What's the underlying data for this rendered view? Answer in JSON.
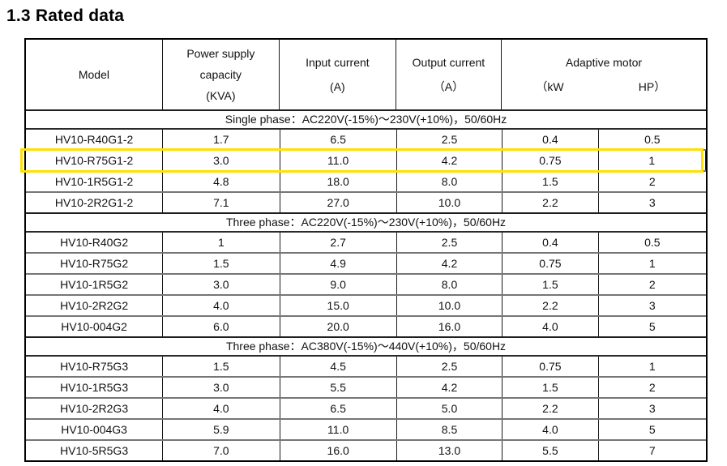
{
  "page_title": "1.3 Rated data",
  "highlight_color": "#ffe000",
  "table": {
    "headers": {
      "model": "Model",
      "power_supply_line1": "Power supply",
      "power_supply_line2": "capacity",
      "power_supply_line3": "(KVA)",
      "input_current_line1": "Input current",
      "input_current_line2": "(A)",
      "output_current_line1": "Output current",
      "output_current_line2": "（A）",
      "adaptive_motor": "Adaptive motor",
      "adaptive_motor_kw": "（kW",
      "adaptive_motor_hp": "HP）"
    },
    "sections": [
      {
        "label": "Single phase：AC220V(-15%)～230V(+10%)，50/60Hz",
        "rows": [
          {
            "model": "HV10-R40G1-2",
            "kva": "1.7",
            "input_a": "6.5",
            "output_a": "2.5",
            "kw": "0.4",
            "hp": "0.5",
            "highlighted": false
          },
          {
            "model": "HV10-R75G1-2",
            "kva": "3.0",
            "input_a": "11.0",
            "output_a": "4.2",
            "kw": "0.75",
            "hp": "1",
            "highlighted": true
          },
          {
            "model": "HV10-1R5G1-2",
            "kva": "4.8",
            "input_a": "18.0",
            "output_a": "8.0",
            "kw": "1.5",
            "hp": "2",
            "highlighted": false
          },
          {
            "model": "HV10-2R2G1-2",
            "kva": "7.1",
            "input_a": "27.0",
            "output_a": "10.0",
            "kw": "2.2",
            "hp": "3",
            "highlighted": false
          }
        ]
      },
      {
        "label": "Three phase：AC220V(-15%)～230V(+10%)，50/60Hz",
        "rows": [
          {
            "model": "HV10-R40G2",
            "kva": "1",
            "input_a": "2.7",
            "output_a": "2.5",
            "kw": "0.4",
            "hp": "0.5",
            "highlighted": false
          },
          {
            "model": "HV10-R75G2",
            "kva": "1.5",
            "input_a": "4.9",
            "output_a": "4.2",
            "kw": "0.75",
            "hp": "1",
            "highlighted": false
          },
          {
            "model": "HV10-1R5G2",
            "kva": "3.0",
            "input_a": "9.0",
            "output_a": "8.0",
            "kw": "1.5",
            "hp": "2",
            "highlighted": false
          },
          {
            "model": "HV10-2R2G2",
            "kva": "4.0",
            "input_a": "15.0",
            "output_a": "10.0",
            "kw": "2.2",
            "hp": "3",
            "highlighted": false
          },
          {
            "model": "HV10-004G2",
            "kva": "6.0",
            "input_a": "20.0",
            "output_a": "16.0",
            "kw": "4.0",
            "hp": "5",
            "highlighted": false
          }
        ]
      },
      {
        "label": "Three phase：AC380V(-15%)～440V(+10%)，50/60Hz",
        "rows": [
          {
            "model": "HV10-R75G3",
            "kva": "1.5",
            "input_a": "4.5",
            "output_a": "2.5",
            "kw": "0.75",
            "hp": "1",
            "highlighted": false
          },
          {
            "model": "HV10-1R5G3",
            "kva": "3.0",
            "input_a": "5.5",
            "output_a": "4.2",
            "kw": "1.5",
            "hp": "2",
            "highlighted": false
          },
          {
            "model": "HV10-2R2G3",
            "kva": "4.0",
            "input_a": "6.5",
            "output_a": "5.0",
            "kw": "2.2",
            "hp": "3",
            "highlighted": false
          },
          {
            "model": "HV10-004G3",
            "kva": "5.9",
            "input_a": "11.0",
            "output_a": "8.5",
            "kw": "4.0",
            "hp": "5",
            "highlighted": false
          },
          {
            "model": "HV10-5R5G3",
            "kva": "7.0",
            "input_a": "16.0",
            "output_a": "13.0",
            "kw": "5.5",
            "hp": "7",
            "highlighted": false
          }
        ]
      }
    ]
  }
}
